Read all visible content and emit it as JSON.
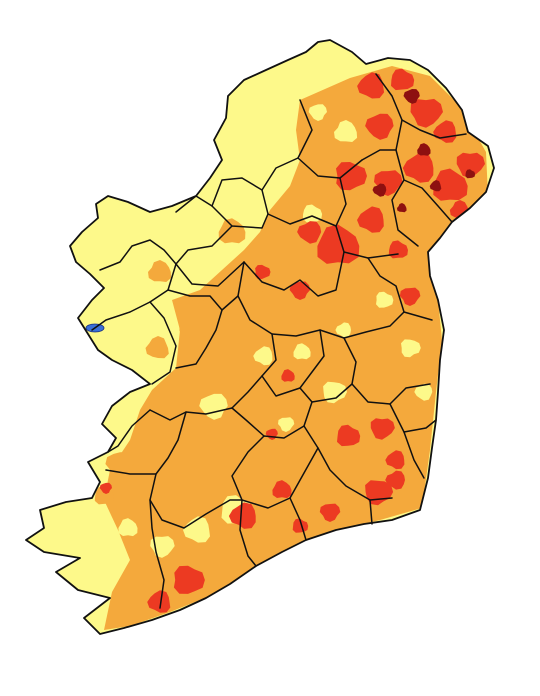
{
  "map": {
    "subject": "Ireland",
    "legend": [],
    "colors": {
      "background": "#ffffff",
      "level_1": "#fdf98a",
      "level_2": "#f4a93c",
      "level_3": "#ec3a22",
      "level_4": "#8e1010",
      "water": "#3a6fd8",
      "border": "#111111"
    }
  }
}
